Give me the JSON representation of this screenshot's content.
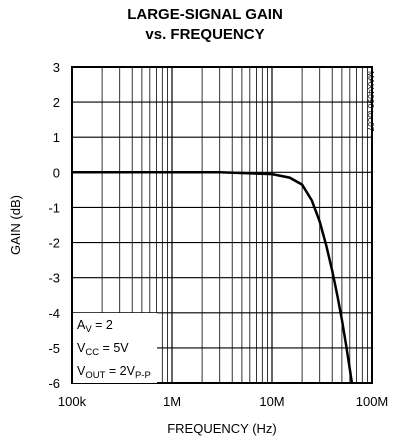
{
  "chart_data": {
    "type": "line",
    "title_line1": "LARGE-SIGNAL GAIN",
    "title_line2": "vs. FREQUENCY",
    "xlabel": "FREQUENCY (Hz)",
    "ylabel": "GAIN (dB)",
    "x_scale": "log",
    "xlim": [
      100000,
      100000000
    ],
    "ylim": [
      -6,
      3
    ],
    "x_tick_values": [
      100000,
      1000000,
      10000000,
      100000000
    ],
    "x_tick_labels": [
      "100k",
      "1M",
      "10M",
      "100M"
    ],
    "y_tick_values": [
      3,
      2,
      1,
      0,
      -1,
      -2,
      -3,
      -4,
      -5,
      -6
    ],
    "y_tick_labels": [
      "3",
      "2",
      "1",
      "0",
      "-1",
      "-2",
      "-3",
      "-4",
      "-5",
      "-6"
    ],
    "grid": true,
    "series": [
      {
        "x": [
          100000,
          1000000,
          3000000,
          10000000,
          15000000,
          20000000,
          25000000,
          30000000,
          35000000,
          40000000,
          45000000,
          50000000,
          55000000,
          60000000,
          63000000
        ],
        "y": [
          0,
          0,
          0,
          -0.05,
          -0.15,
          -0.35,
          -0.8,
          -1.4,
          -2.1,
          -2.8,
          -3.5,
          -4.2,
          -4.9,
          -5.6,
          -6.0
        ]
      }
    ],
    "annotations": {
      "conditions": [
        {
          "main": "A",
          "sub": "V",
          "rest": " = 2"
        },
        {
          "main": "V",
          "sub": "CC",
          "rest": " = 5V"
        },
        {
          "main": "V",
          "sub": "OUT",
          "rest": " = 2V",
          "sub2": "P-P"
        }
      ],
      "plot_id": "MAX4090 toc07"
    }
  }
}
